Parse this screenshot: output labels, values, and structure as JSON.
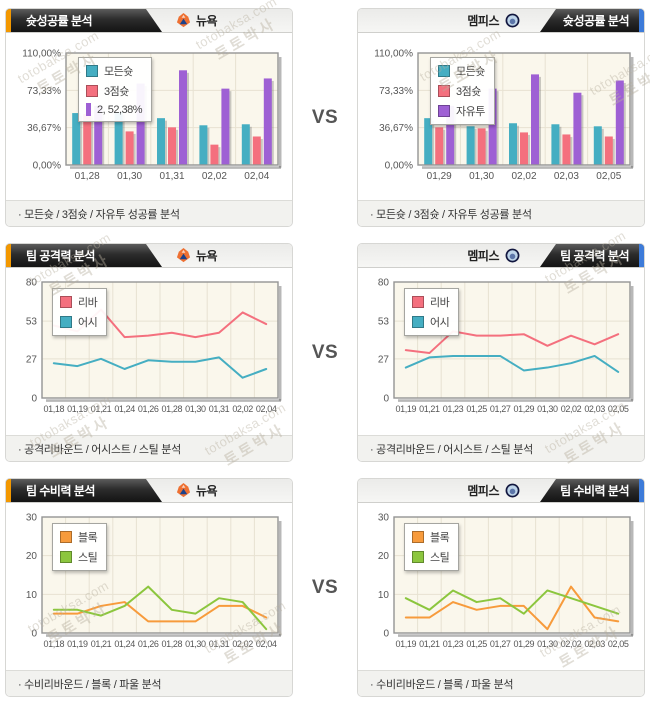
{
  "vs_label": "VS",
  "teams": {
    "left": {
      "name": "뉴욕"
    },
    "right": {
      "name": "멤피스"
    }
  },
  "watermark": {
    "kr": "토토박사",
    "en": "totobaksa.com"
  },
  "colors": {
    "accent_orange": "#F39800",
    "accent_blue": "#3D7BD9",
    "plot_bg": "#FAF7EC",
    "grid": "#E7E2D2",
    "teal": "#45AEC2",
    "red": "#F4707E",
    "purple": "#9E60D4",
    "orange": "#F79B3C",
    "green": "#8CC63E"
  },
  "rows": [
    {
      "title": "슛성공률 분석",
      "caption": "· 모든슛 / 3점슛 / 자유투 성공률 분석"
    },
    {
      "title": "팀 공격력 분석",
      "caption": "· 공격리바운드 / 어시스트 / 스틸 분석"
    },
    {
      "title": "팀 수비력 분석",
      "caption": "· 수비리바운드 / 블록 / 파울 분석"
    }
  ],
  "chart_data": [
    {
      "type": "bar",
      "title": "슛성공률 분석 - 뉴욕",
      "categories": [
        "01,28",
        "01,30",
        "01,31",
        "02,02",
        "02,04"
      ],
      "series": [
        {
          "name": "모든슛",
          "color": "#45AEC2",
          "values": [
            51,
            52,
            46,
            39,
            40
          ]
        },
        {
          "name": "3점슛",
          "color": "#F4707E",
          "values": [
            50,
            33,
            37,
            20,
            28
          ]
        },
        {
          "name": "자유투",
          "color": "#9E60D4",
          "values": [
            58,
            80,
            93,
            75,
            85
          ]
        }
      ],
      "ylim": [
        0,
        110
      ],
      "yticks": [
        {
          "v": 110,
          "label": "110,00%"
        },
        {
          "v": 73.33,
          "label": "73,33%"
        },
        {
          "v": 36.67,
          "label": "36,67%"
        },
        {
          "v": 0,
          "label": "0,00%"
        }
      ],
      "legend": [
        {
          "icon": "square",
          "color": "#45AEC2",
          "label": "모든슛"
        },
        {
          "icon": "square",
          "color": "#F4707E",
          "label": "3점슛"
        },
        {
          "icon": "bar",
          "color": "#9E60D4",
          "label": "2, 52,38%"
        }
      ]
    },
    {
      "type": "bar",
      "title": "슛성공률 분석 - 멤피스",
      "categories": [
        "01,29",
        "01,30",
        "02,02",
        "02,03",
        "02,05"
      ],
      "series": [
        {
          "name": "모든슛",
          "color": "#45AEC2",
          "values": [
            46,
            38,
            41,
            40,
            38
          ]
        },
        {
          "name": "3점슛",
          "color": "#F4707E",
          "values": [
            37,
            36,
            32,
            30,
            28
          ]
        },
        {
          "name": "자유투",
          "color": "#9E60D4",
          "values": [
            58,
            75,
            89,
            71,
            83
          ]
        }
      ],
      "ylim": [
        0,
        110
      ],
      "yticks": [
        {
          "v": 110,
          "label": "110,00%"
        },
        {
          "v": 73.33,
          "label": "73,33%"
        },
        {
          "v": 36.67,
          "label": "36,67%"
        },
        {
          "v": 0,
          "label": "0,00%"
        }
      ],
      "legend": [
        {
          "icon": "square",
          "color": "#45AEC2",
          "label": "모든슛"
        },
        {
          "icon": "square",
          "color": "#F4707E",
          "label": "3점슛"
        },
        {
          "icon": "square",
          "color": "#9E60D4",
          "label": "자유투"
        }
      ]
    },
    {
      "type": "line",
      "title": "팀 공격력 분석 - 뉴욕",
      "categories": [
        "01,18",
        "01,19",
        "01,21",
        "01,24",
        "01,26",
        "01,28",
        "01,30",
        "01,31",
        "02,02",
        "02,04"
      ],
      "series": [
        {
          "name": "리바",
          "color": "#F4707E",
          "values": [
            50,
            46,
            61,
            42,
            43,
            45,
            42,
            45,
            59,
            51
          ]
        },
        {
          "name": "어시",
          "color": "#45AEC2",
          "values": [
            24,
            22,
            27,
            20,
            26,
            25,
            25,
            28,
            14,
            20
          ]
        }
      ],
      "ylim": [
        0,
        80
      ],
      "yticks": [
        {
          "v": 80,
          "label": "80"
        },
        {
          "v": 53,
          "label": "53"
        },
        {
          "v": 27,
          "label": "27"
        },
        {
          "v": 0,
          "label": "0"
        }
      ],
      "legend": [
        {
          "icon": "square",
          "color": "#F4707E",
          "label": "리바"
        },
        {
          "icon": "square",
          "color": "#45AEC2",
          "label": "어시"
        }
      ]
    },
    {
      "type": "line",
      "title": "팀 공격력 분석 - 멤피스",
      "categories": [
        "01,19",
        "01,21",
        "01,23",
        "01,25",
        "01,27",
        "01,29",
        "01,30",
        "02,02",
        "02,03",
        "02,05"
      ],
      "series": [
        {
          "name": "리바",
          "color": "#F4707E",
          "values": [
            33,
            31,
            46,
            43,
            43,
            44,
            36,
            43,
            37,
            44
          ]
        },
        {
          "name": "어시",
          "color": "#45AEC2",
          "values": [
            21,
            28,
            29,
            29,
            29,
            19,
            21,
            24,
            29,
            18
          ]
        }
      ],
      "ylim": [
        0,
        80
      ],
      "yticks": [
        {
          "v": 80,
          "label": "80"
        },
        {
          "v": 53,
          "label": "53"
        },
        {
          "v": 27,
          "label": "27"
        },
        {
          "v": 0,
          "label": "0"
        }
      ],
      "legend": [
        {
          "icon": "square",
          "color": "#F4707E",
          "label": "리바"
        },
        {
          "icon": "square",
          "color": "#45AEC2",
          "label": "어시"
        }
      ]
    },
    {
      "type": "line",
      "title": "팀 수비력 분석 - 뉴욕",
      "categories": [
        "01,18",
        "01,19",
        "01,21",
        "01,24",
        "01,26",
        "01,28",
        "01,30",
        "01,31",
        "02,02",
        "02,04"
      ],
      "series": [
        {
          "name": "블록",
          "color": "#F79B3C",
          "values": [
            5,
            5,
            7,
            8,
            3,
            3,
            3,
            7,
            7,
            4
          ]
        },
        {
          "name": "스틸",
          "color": "#8CC63E",
          "values": [
            6,
            6,
            4.5,
            7,
            12,
            6,
            5,
            9,
            8,
            1
          ]
        }
      ],
      "ylim": [
        0,
        30
      ],
      "yticks": [
        {
          "v": 30,
          "label": "30"
        },
        {
          "v": 20,
          "label": "20"
        },
        {
          "v": 10,
          "label": "10"
        },
        {
          "v": 0,
          "label": "0"
        }
      ],
      "legend": [
        {
          "icon": "square",
          "color": "#F79B3C",
          "label": "블록"
        },
        {
          "icon": "square",
          "color": "#8CC63E",
          "label": "스틸"
        }
      ]
    },
    {
      "type": "line",
      "title": "팀 수비력 분석 - 멤피스",
      "categories": [
        "01,19",
        "01,21",
        "01,23",
        "01,25",
        "01,27",
        "01,29",
        "01,30",
        "02,02",
        "02,03",
        "02,05"
      ],
      "series": [
        {
          "name": "블록",
          "color": "#F79B3C",
          "values": [
            4,
            4,
            8,
            6,
            7,
            7,
            1,
            12,
            4,
            3
          ]
        },
        {
          "name": "스틸",
          "color": "#8CC63E",
          "values": [
            9,
            6,
            11,
            8,
            9,
            5,
            11,
            9,
            7,
            5
          ]
        }
      ],
      "ylim": [
        0,
        30
      ],
      "yticks": [
        {
          "v": 30,
          "label": "30"
        },
        {
          "v": 20,
          "label": "20"
        },
        {
          "v": 10,
          "label": "10"
        },
        {
          "v": 0,
          "label": "0"
        }
      ],
      "legend": [
        {
          "icon": "square",
          "color": "#F79B3C",
          "label": "블록"
        },
        {
          "icon": "square",
          "color": "#8CC63E",
          "label": "스틸"
        }
      ]
    }
  ]
}
